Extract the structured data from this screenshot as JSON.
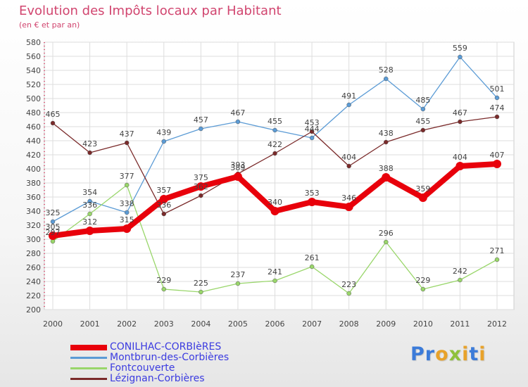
{
  "header": {
    "title": "Evolution des Impôts locaux par Habitant",
    "subtitle": "(en € et par an)"
  },
  "brand": {
    "letters": [
      "P",
      "r",
      "o",
      "x",
      "i",
      "t",
      "i"
    ],
    "letter_colors": [
      "#3b7bd9",
      "#3b7bd9",
      "#e8a22a",
      "#8fc13a",
      "#e8a22a",
      "#3b7bd9",
      "#e8a22a"
    ]
  },
  "chart_data": {
    "type": "line",
    "title": "Evolution des Impôts locaux par Habitant",
    "subtitle": "(en € et par an)",
    "xlabel": "",
    "ylabel": "",
    "x": [
      "2000",
      "2001",
      "2002",
      "2003",
      "2004",
      "2005",
      "2006",
      "2007",
      "2008",
      "2009",
      "2010",
      "2011",
      "2012"
    ],
    "ylim": [
      200,
      580
    ],
    "yticks": [
      200,
      220,
      240,
      260,
      280,
      300,
      320,
      340,
      360,
      380,
      400,
      420,
      440,
      460,
      480,
      500,
      520,
      540,
      560,
      580
    ],
    "grid": true,
    "legend_position": "bottom-left",
    "series": [
      {
        "name": "Montbrun-des-Corbières",
        "color": "#5b9bd5",
        "emphasis": false,
        "values": [
          325,
          354,
          338,
          439,
          457,
          467,
          455,
          444,
          491,
          528,
          485,
          559,
          501
        ],
        "labels": [
          "325",
          "354",
          "338",
          "439",
          "457",
          "467",
          "455",
          "444",
          "491",
          "528",
          "485",
          "559",
          "501"
        ]
      },
      {
        "name": "Fontcouverte",
        "color": "#99d66a",
        "emphasis": false,
        "values": [
          297,
          336,
          377,
          229,
          225,
          237,
          241,
          261,
          223,
          296,
          229,
          242,
          271
        ],
        "labels": [
          "297",
          "336",
          "377",
          "229",
          "225",
          "237",
          "241",
          "261",
          "223",
          "296",
          "229",
          "242",
          "271"
        ]
      },
      {
        "name": "Lézignan-Corbières",
        "color": "#7a2a2a",
        "emphasis": false,
        "values": [
          465,
          423,
          437,
          336,
          362,
          393,
          422,
          453,
          404,
          438,
          455,
          467,
          474
        ],
        "labels": [
          "465",
          "423",
          "437",
          "336",
          "362",
          "393",
          "422",
          "453",
          "404",
          "438",
          "455",
          "467",
          "474"
        ]
      },
      {
        "name": "CONILHAC-CORBIèRES",
        "color": "#e8000b",
        "emphasis": true,
        "values": [
          305,
          312,
          315,
          357,
          375,
          389,
          340,
          353,
          346,
          388,
          359,
          404,
          407
        ],
        "labels": [
          "305",
          "312",
          "315",
          "357",
          "375",
          "389",
          "340",
          "353",
          "346",
          "388",
          "359",
          "404",
          "407"
        ]
      }
    ]
  },
  "legend": {
    "items": [
      {
        "label": "CONILHAC-CORBIèRES",
        "color": "#e8000b",
        "thick": true
      },
      {
        "label": "Montbrun-des-Corbières",
        "color": "#5b9bd5",
        "thick": false
      },
      {
        "label": "Fontcouverte",
        "color": "#99d66a",
        "thick": false
      },
      {
        "label": "Lézignan-Corbières",
        "color": "#7a2a2a",
        "thick": false
      }
    ]
  }
}
